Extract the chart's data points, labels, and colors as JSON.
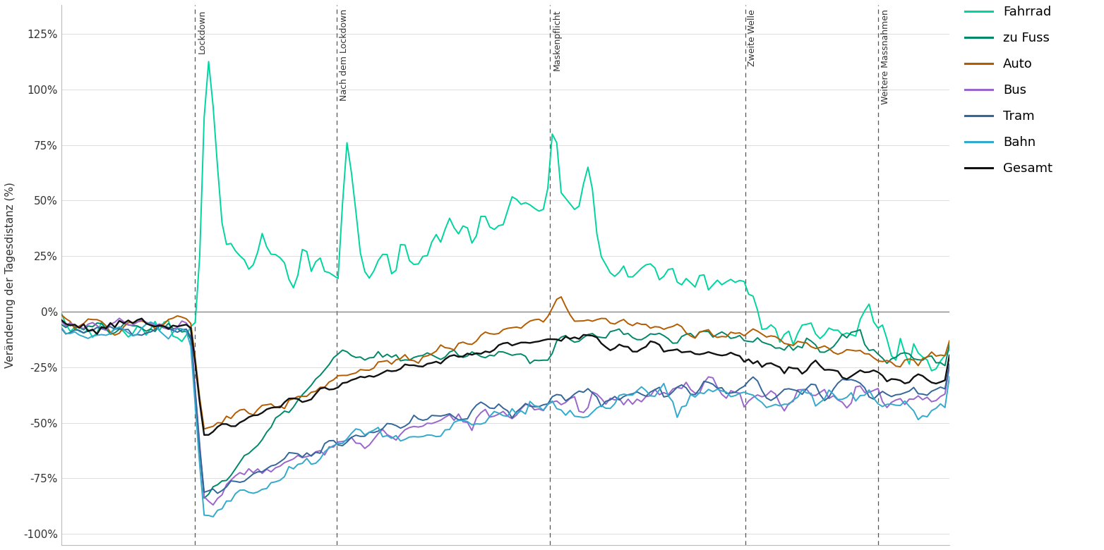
{
  "ylabel": "Veränderung der Tagesdistanz (%)",
  "ylim": [
    -1.05,
    1.38
  ],
  "yticks": [
    -1.0,
    -0.75,
    -0.5,
    -0.25,
    0.0,
    0.25,
    0.5,
    0.75,
    1.0,
    1.25
  ],
  "ytick_labels": [
    "-100%",
    "-75%",
    "-50%",
    "-25%",
    "0%",
    "25%",
    "50%",
    "75%",
    "100%",
    "125%"
  ],
  "vlines_x": [
    0.15,
    0.31,
    0.55,
    0.77,
    0.92
  ],
  "vline_labels": [
    "Lockdown",
    "Nach dem Lockdown",
    "Maskenpflicht",
    "Zweite Welle",
    "Weitere Massnahmen"
  ],
  "colors": {
    "Fahrrad": "#00d4a0",
    "zu Fuss": "#008868",
    "Auto": "#b35c00",
    "Bus": "#9966cc",
    "Tram": "#336699",
    "Bahn": "#33aacc",
    "Gesamt": "#111111"
  },
  "legend_order": [
    "Fahrrad",
    "zu Fuss",
    "Auto",
    "Bus",
    "Tram",
    "Bahn",
    "Gesamt"
  ],
  "background_color": "#ffffff",
  "grid_color": "#dddddd",
  "n_points": 200
}
